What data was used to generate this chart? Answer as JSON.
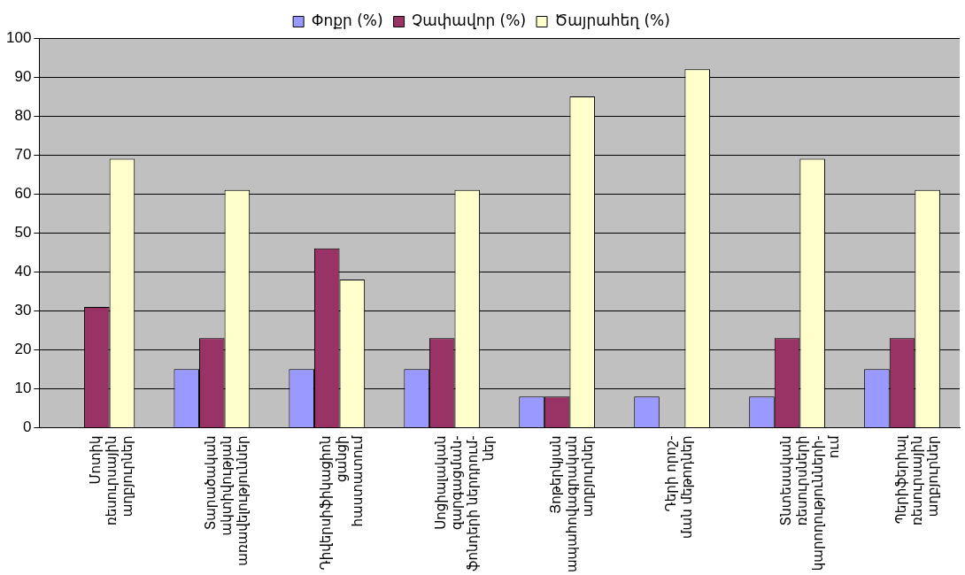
{
  "chart_data": {
    "type": "bar",
    "categories": [
      "Մոտիկ\nռեսուրսային\nաղբյուրներ",
      "Տարածական\nակտիվության\nառավելություններ",
      "Դիվերսիֆիկացիոն\nցանցի\nհաստատում",
      "Սոցիալական\nզարգացման-\nֆոնդերի ներդրում-\nներ",
      "Յոթերկյան\nապահովագրական\nաղբյուրներ",
      "Դերի որոշ-\nման մեթոդներ",
      "Տնտեսական\nռեսուրսների\nկարողությունների-\nում",
      "Պերիֆերիալ\nռեսուրսային\nաղբյուրներ"
    ],
    "series": [
      {
        "name": "Փոքր (%)",
        "color": "#9999ff",
        "values": [
          0,
          15,
          15,
          15,
          8,
          8,
          8,
          15
        ]
      },
      {
        "name": "Չափավոր (%)",
        "color": "#993366",
        "values": [
          31,
          23,
          46,
          23,
          8,
          0,
          23,
          23
        ]
      },
      {
        "name": "Ծայրահեղ (%)",
        "color": "#ffffcc",
        "values": [
          69,
          61,
          38,
          61,
          85,
          92,
          69,
          61
        ]
      }
    ],
    "ylim": [
      0,
      100
    ],
    "yticks": [
      0,
      10,
      20,
      30,
      40,
      50,
      60,
      70,
      80,
      90,
      100
    ],
    "grid": "y",
    "legend": "top"
  }
}
